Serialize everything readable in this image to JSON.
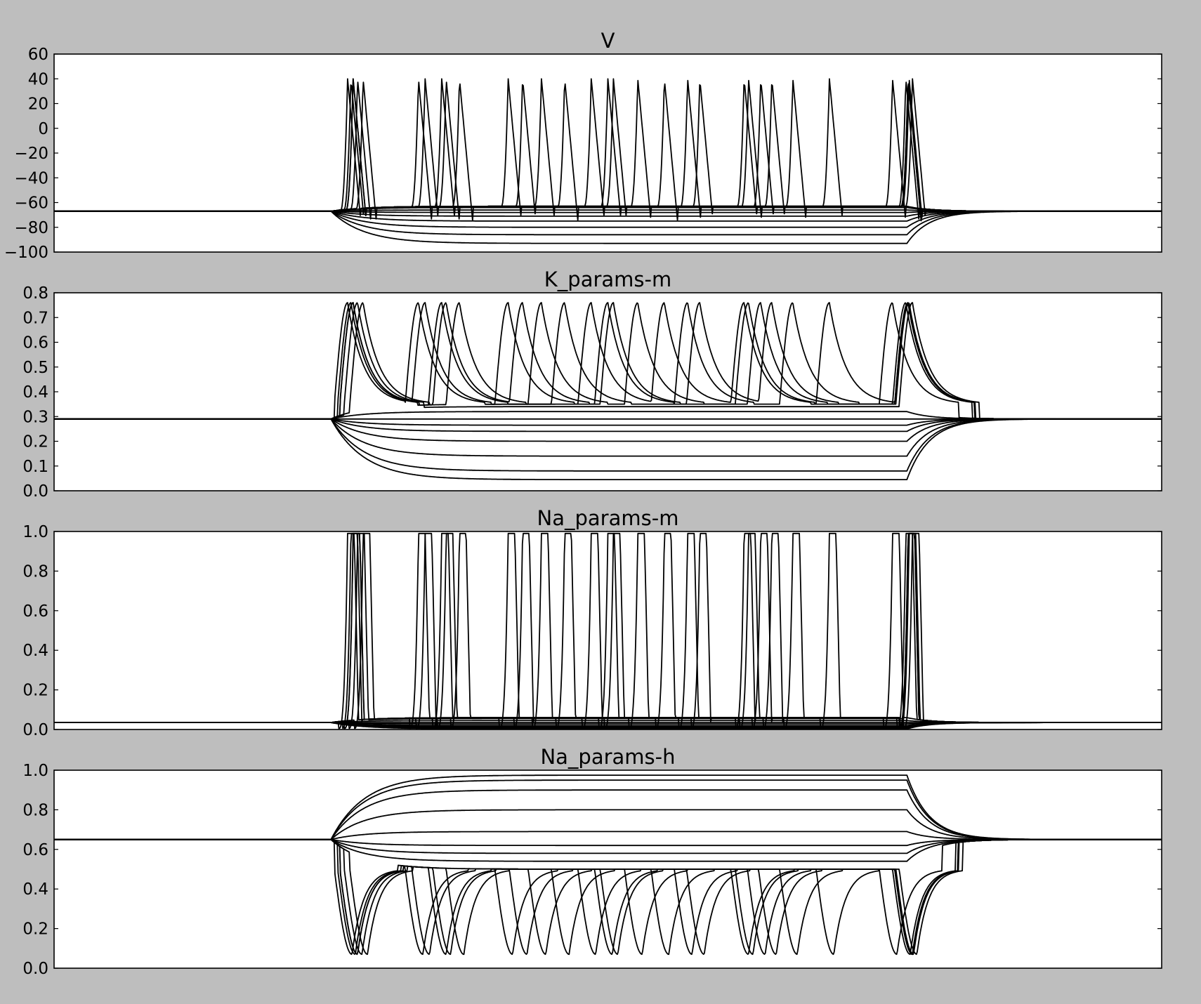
{
  "figure": {
    "background": "#bebebe",
    "plot_background": "#ffffff",
    "line_color": "#000000"
  },
  "chart_data": [
    {
      "type": "line",
      "title": "V",
      "xlabel": "",
      "ylabel": "",
      "ylim": [
        -100,
        60
      ],
      "yticks": [
        -100,
        -80,
        -60,
        -40,
        -20,
        0,
        20,
        40,
        60
      ],
      "ytick_labels": [
        "−100",
        "−80",
        "−60",
        "−40",
        "−20",
        "0",
        "20",
        "40",
        "60"
      ],
      "xlim": [
        0,
        1
      ],
      "x_tick_labels_shown": false,
      "grid": false,
      "legend": "none",
      "stimulus_window": [
        0.25,
        0.77
      ],
      "rest_value": -67,
      "trace_count": 14,
      "steady_levels": [
        -93,
        -86,
        -80,
        -75,
        -71,
        -68,
        -66,
        -64,
        -63,
        -63,
        -63,
        -63,
        -63,
        -63
      ],
      "spike_peak": 40,
      "onset_spike_peak": 45,
      "afterhyperpolarization": -76,
      "spike_times": [
        [],
        [],
        [],
        [],
        [],
        [],
        [],
        [],
        [
          0.274,
          0.775
        ],
        [
          0.27,
          0.335,
          0.461,
          0.572,
          0.667,
          0.772
        ],
        [
          0.265,
          0.329,
          0.41,
          0.485,
          0.551,
          0.623,
          0.7,
          0.771
        ],
        [
          0.27,
          0.35,
          0.44,
          0.527,
          0.627,
          0.769
        ],
        [
          0.279,
          0.354,
          0.423,
          0.505,
          0.583,
          0.648,
          0.757
        ],
        [
          0.268,
          0.366,
          0.5,
          0.638,
          0.771
        ]
      ]
    },
    {
      "type": "line",
      "title": "K_params-m",
      "xlabel": "",
      "ylabel": "",
      "ylim": [
        0.0,
        0.8
      ],
      "yticks": [
        0.0,
        0.1,
        0.2,
        0.3,
        0.4,
        0.5,
        0.6,
        0.7,
        0.8
      ],
      "ytick_labels": [
        "0.0",
        "0.1",
        "0.2",
        "0.3",
        "0.4",
        "0.5",
        "0.6",
        "0.7",
        "0.8"
      ],
      "xlim": [
        0,
        1
      ],
      "x_tick_labels_shown": false,
      "grid": false,
      "legend": "none",
      "stimulus_window": [
        0.25,
        0.77
      ],
      "rest_value": 0.29,
      "trace_count": 14,
      "steady_levels": [
        0.045,
        0.08,
        0.14,
        0.2,
        0.24,
        0.265,
        0.29,
        0.32,
        0.34,
        0.35,
        0.35,
        0.35,
        0.35,
        0.35
      ],
      "spike_peak": 0.76,
      "onset_spike_peak": 0.78,
      "afterhyperpolarization": 0.35,
      "spike_times": [
        [],
        [],
        [],
        [],
        [],
        [],
        [],
        [],
        [
          0.274,
          0.775
        ],
        [
          0.27,
          0.335,
          0.461,
          0.572,
          0.667,
          0.772
        ],
        [
          0.265,
          0.329,
          0.41,
          0.485,
          0.551,
          0.623,
          0.7,
          0.771
        ],
        [
          0.27,
          0.35,
          0.44,
          0.527,
          0.627,
          0.769
        ],
        [
          0.279,
          0.354,
          0.423,
          0.505,
          0.583,
          0.648,
          0.757
        ],
        [
          0.268,
          0.366,
          0.5,
          0.638,
          0.771
        ]
      ]
    },
    {
      "type": "line",
      "title": "Na_params-m",
      "xlabel": "",
      "ylabel": "",
      "ylim": [
        0.0,
        1.0
      ],
      "yticks": [
        0.0,
        0.2,
        0.4,
        0.6,
        0.8,
        1.0
      ],
      "ytick_labels": [
        "0.0",
        "0.2",
        "0.4",
        "0.6",
        "0.8",
        "1.0"
      ],
      "xlim": [
        0,
        1
      ],
      "x_tick_labels_shown": false,
      "grid": false,
      "legend": "none",
      "stimulus_window": [
        0.25,
        0.77
      ],
      "rest_value": 0.035,
      "trace_count": 14,
      "steady_levels": [
        0.003,
        0.006,
        0.01,
        0.015,
        0.02,
        0.028,
        0.035,
        0.045,
        0.055,
        0.06,
        0.06,
        0.06,
        0.06,
        0.06
      ],
      "spike_peak": 0.99,
      "onset_spike_peak": 0.995,
      "afterhyperpolarization": 0.005,
      "spike_times": [
        [],
        [],
        [],
        [],
        [],
        [],
        [],
        [],
        [
          0.274,
          0.775
        ],
        [
          0.27,
          0.335,
          0.461,
          0.572,
          0.667,
          0.772
        ],
        [
          0.265,
          0.329,
          0.41,
          0.485,
          0.551,
          0.623,
          0.7,
          0.771
        ],
        [
          0.27,
          0.35,
          0.44,
          0.527,
          0.627,
          0.769
        ],
        [
          0.279,
          0.354,
          0.423,
          0.505,
          0.583,
          0.648,
          0.757
        ],
        [
          0.268,
          0.366,
          0.5,
          0.638,
          0.771
        ]
      ]
    },
    {
      "type": "line",
      "title": "Na_params-h",
      "xlabel": "",
      "ylabel": "",
      "ylim": [
        0.0,
        1.0
      ],
      "yticks": [
        0.0,
        0.2,
        0.4,
        0.6,
        0.8,
        1.0
      ],
      "ytick_labels": [
        "0.0",
        "0.2",
        "0.4",
        "0.6",
        "0.8",
        "1.0"
      ],
      "xlim": [
        0,
        1
      ],
      "x_tick_labels_shown": false,
      "grid": false,
      "legend": "none",
      "stimulus_window": [
        0.25,
        0.77
      ],
      "rest_value": 0.65,
      "trace_count": 14,
      "steady_levels": [
        0.975,
        0.95,
        0.9,
        0.8,
        0.69,
        0.62,
        0.58,
        0.54,
        0.5,
        0.5,
        0.5,
        0.5,
        0.5,
        0.5
      ],
      "spike_peak": 0.07,
      "onset_spike_peak": 0.07,
      "afterhyperpolarization": 0.5,
      "spike_times": [
        [],
        [],
        [],
        [],
        [],
        [],
        [],
        [],
        [
          0.274,
          0.775
        ],
        [
          0.27,
          0.335,
          0.461,
          0.572,
          0.667,
          0.772
        ],
        [
          0.265,
          0.329,
          0.41,
          0.485,
          0.551,
          0.623,
          0.7,
          0.771
        ],
        [
          0.27,
          0.35,
          0.44,
          0.527,
          0.627,
          0.769
        ],
        [
          0.279,
          0.354,
          0.423,
          0.505,
          0.583,
          0.648,
          0.757
        ],
        [
          0.268,
          0.366,
          0.5,
          0.638,
          0.771
        ]
      ]
    }
  ]
}
